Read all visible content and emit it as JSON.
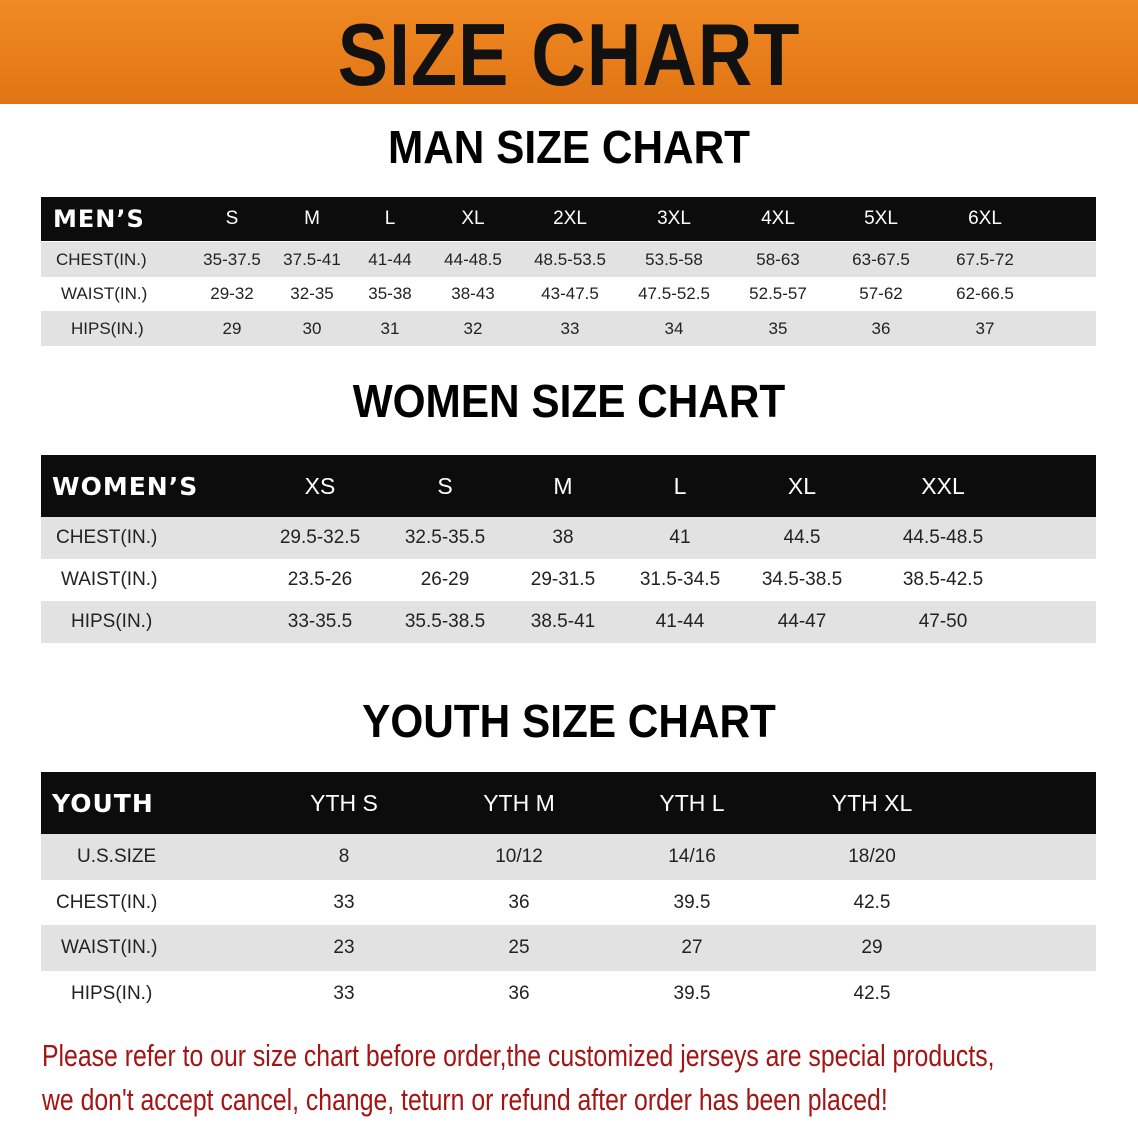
{
  "banner": {
    "title": "SIZE CHART",
    "color": "#e8801c"
  },
  "men": {
    "heading": "MAN SIZE CHART",
    "header_label": "MEN’S",
    "sizes": [
      "S",
      "M",
      "L",
      "XL",
      "2XL",
      "3XL",
      "4XL",
      "5XL",
      "6XL"
    ],
    "rows": [
      {
        "label": "CHEST(IN.)",
        "values": [
          "35-37.5",
          "37.5-41",
          "41-44",
          "44-48.5",
          "48.5-53.5",
          "53.5-58",
          "58-63",
          "63-67.5",
          "67.5-72"
        ]
      },
      {
        "label": "WAIST(IN.)",
        "values": [
          "29-32",
          "32-35",
          "35-38",
          "38-43",
          "43-47.5",
          "47.5-52.5",
          "52.5-57",
          "57-62",
          "62-66.5"
        ]
      },
      {
        "label": "HIPS(IN.)",
        "values": [
          "29",
          "30",
          "31",
          "32",
          "33",
          "34",
          "35",
          "36",
          "37"
        ]
      }
    ]
  },
  "women": {
    "heading": "WOMEN SIZE CHART",
    "header_label": "WOMEN’S",
    "sizes": [
      "XS",
      "S",
      "M",
      "L",
      "XL",
      "XXL"
    ],
    "rows": [
      {
        "label": "CHEST(IN.)",
        "values": [
          "29.5-32.5",
          "32.5-35.5",
          "38",
          "41",
          "44.5",
          "44.5-48.5"
        ]
      },
      {
        "label": "WAIST(IN.)",
        "values": [
          "23.5-26",
          "26-29",
          "29-31.5",
          "31.5-34.5",
          "34.5-38.5",
          "38.5-42.5"
        ]
      },
      {
        "label": "HIPS(IN.)",
        "values": [
          "33-35.5",
          "35.5-38.5",
          "38.5-41",
          "41-44",
          "44-47",
          "47-50"
        ]
      }
    ]
  },
  "youth": {
    "heading": "YOUTH SIZE CHART",
    "header_label": "YOUTH",
    "sizes": [
      "YTH S",
      "YTH M",
      "YTH L",
      "YTH XL"
    ],
    "rows": [
      {
        "label": "U.S.SIZE",
        "values": [
          "8",
          "10/12",
          "14/16",
          "18/20"
        ]
      },
      {
        "label": "CHEST(IN.)",
        "values": [
          "33",
          "36",
          "39.5",
          "42.5"
        ]
      },
      {
        "label": "WAIST(IN.)",
        "values": [
          "23",
          "25",
          "27",
          "29"
        ]
      },
      {
        "label": "HIPS(IN.)",
        "values": [
          "33",
          "36",
          "39.5",
          "42.5"
        ]
      }
    ]
  },
  "notice": {
    "line1": "Please refer to our size chart before order,the customized jerseys are special products,",
    "line2": "we don't accept cancel, change, teturn or refund after order has been placed!",
    "color": "#a31515"
  }
}
